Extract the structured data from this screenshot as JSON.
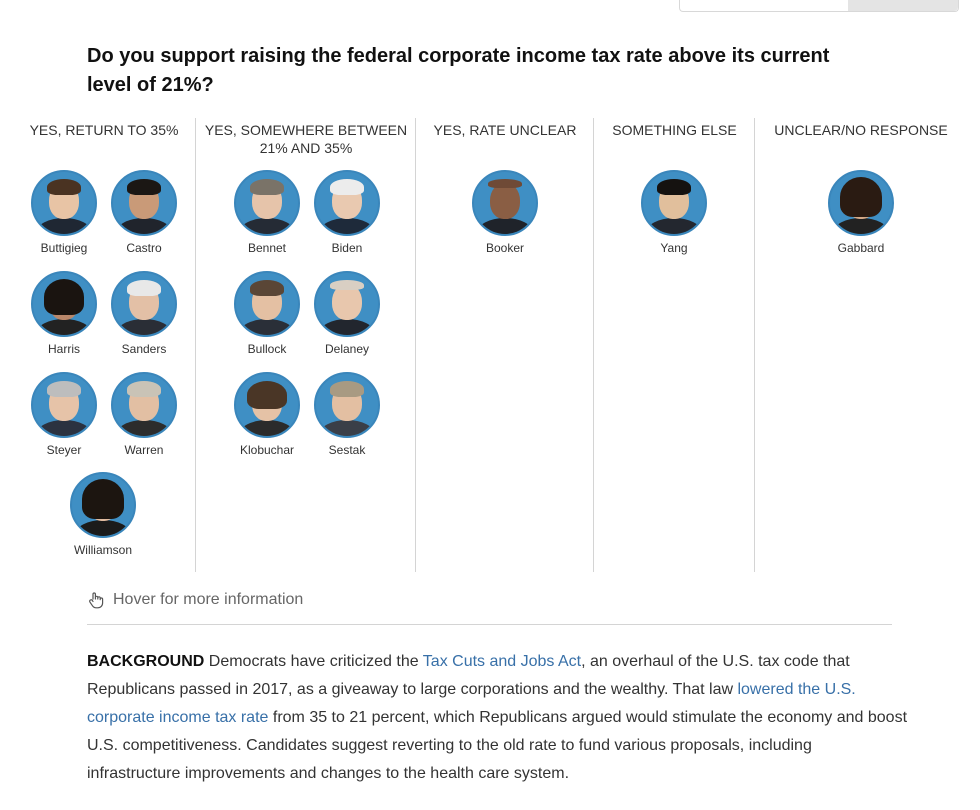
{
  "question": "Do you support raising the federal corporate income tax rate above its current level of 21%?",
  "columns": [
    {
      "heading": "YES, RETURN TO 35%",
      "candidates": [
        "Buttigieg",
        "Castro",
        "Harris",
        "Sanders",
        "Steyer",
        "Warren",
        "Williamson"
      ]
    },
    {
      "heading": "YES, SOMEWHERE BETWEEN 21% AND 35%",
      "candidates": [
        "Bennet",
        "Biden",
        "Bullock",
        "Delaney",
        "Klobuchar",
        "Sestak"
      ]
    },
    {
      "heading": "YES, RATE UNCLEAR",
      "candidates": [
        "Booker"
      ]
    },
    {
      "heading": "SOMETHING ELSE",
      "candidates": [
        "Yang"
      ]
    },
    {
      "heading": "UNCLEAR/NO RESPONSE",
      "candidates": [
        "Gabbard"
      ]
    }
  ],
  "hover_hint": "Hover for more information",
  "background": {
    "label": "BACKGROUND",
    "text1": " Democrats have criticized the ",
    "link1": "Tax Cuts and Jobs Act",
    "text2": ", an overhaul of the U.S. tax code that Republicans passed in 2017, as a giveaway to large corporations and the wealthy. That law ",
    "link2": "lowered the U.S. corporate income tax rate",
    "text3": " from 35 to 21 percent, which Republicans argued would stimulate the economy and boost U.S. competitiveness. Candidates suggest reverting to the old rate to fund various proposals, including infrastructure improvements and changes to the health care system."
  },
  "colors": {
    "avatar_ring": "#3f8fc4",
    "link": "#3870a8",
    "divider": "#d4d4d4"
  },
  "icons": {
    "hover_hint": "pointing-hand-icon"
  }
}
